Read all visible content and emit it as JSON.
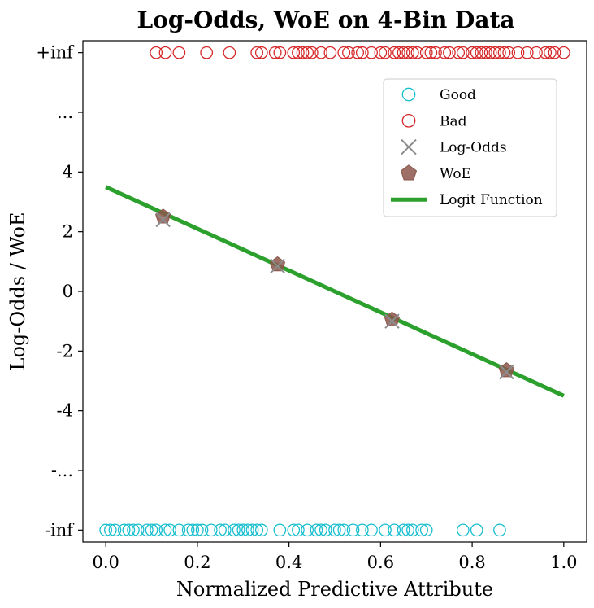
{
  "chart_data": {
    "type": "scatter",
    "title": "Log-Odds, WoE on 4-Bin Data",
    "xlabel": "Normalized Predictive Attribute",
    "ylabel": "Log-Odds / WoE",
    "xlim": [
      -0.05,
      1.05
    ],
    "ylim": [
      -8.4,
      8.4
    ],
    "x_ticks": [
      {
        "value": 0.0,
        "label": "0.0"
      },
      {
        "value": 0.2,
        "label": "0.2"
      },
      {
        "value": 0.4,
        "label": "0.4"
      },
      {
        "value": 0.6,
        "label": "0.6"
      },
      {
        "value": 0.8,
        "label": "0.8"
      },
      {
        "value": 1.0,
        "label": "1.0"
      }
    ],
    "y_ticks": [
      {
        "value": -8,
        "label": "-inf"
      },
      {
        "value": -6,
        "label": "-..."
      },
      {
        "value": -4,
        "label": "-4"
      },
      {
        "value": -2,
        "label": "-2"
      },
      {
        "value": 0,
        "label": "0"
      },
      {
        "value": 2,
        "label": "2"
      },
      {
        "value": 4,
        "label": "4"
      },
      {
        "value": 6,
        "label": "..."
      },
      {
        "value": 8,
        "label": "+inf"
      }
    ],
    "grid": false,
    "legend_position": "top-right",
    "series": [
      {
        "name": "Good",
        "kind": "scatter",
        "marker": "open-circle",
        "color": "#17becf",
        "y_value": -8,
        "x": [
          0.0,
          0.01,
          0.02,
          0.04,
          0.05,
          0.06,
          0.07,
          0.09,
          0.1,
          0.11,
          0.13,
          0.14,
          0.16,
          0.18,
          0.19,
          0.2,
          0.21,
          0.23,
          0.25,
          0.26,
          0.28,
          0.29,
          0.3,
          0.31,
          0.32,
          0.33,
          0.34,
          0.38,
          0.41,
          0.42,
          0.44,
          0.46,
          0.47,
          0.48,
          0.5,
          0.51,
          0.52,
          0.54,
          0.56,
          0.58,
          0.61,
          0.63,
          0.65,
          0.66,
          0.67,
          0.69,
          0.7,
          0.78,
          0.81,
          0.86
        ]
      },
      {
        "name": "Bad",
        "kind": "scatter",
        "marker": "open-circle",
        "color": "#d62728",
        "y_value": 8,
        "x": [
          0.11,
          0.13,
          0.16,
          0.22,
          0.27,
          0.33,
          0.34,
          0.37,
          0.38,
          0.41,
          0.42,
          0.43,
          0.44,
          0.45,
          0.47,
          0.49,
          0.52,
          0.53,
          0.55,
          0.56,
          0.58,
          0.6,
          0.61,
          0.63,
          0.64,
          0.65,
          0.66,
          0.67,
          0.68,
          0.7,
          0.71,
          0.72,
          0.74,
          0.75,
          0.77,
          0.78,
          0.8,
          0.81,
          0.82,
          0.83,
          0.84,
          0.85,
          0.86,
          0.87,
          0.88,
          0.9,
          0.92,
          0.94,
          0.96,
          0.97,
          0.98,
          1.0
        ]
      },
      {
        "name": "Log-Odds",
        "kind": "scatter",
        "marker": "x",
        "color": "#8c8c8c",
        "x": [
          0.125,
          0.375,
          0.625,
          0.875
        ],
        "y": [
          2.4,
          0.85,
          -1.0,
          -2.7
        ]
      },
      {
        "name": "WoE",
        "kind": "scatter",
        "marker": "pentagon",
        "color": "#8c564b",
        "x": [
          0.125,
          0.375,
          0.625,
          0.875
        ],
        "y": [
          2.5,
          0.9,
          -0.95,
          -2.65
        ]
      },
      {
        "name": "Logit Function",
        "kind": "line",
        "color": "#2ca02c",
        "x": [
          0.0,
          1.0
        ],
        "y": [
          3.5,
          -3.5
        ]
      }
    ]
  }
}
